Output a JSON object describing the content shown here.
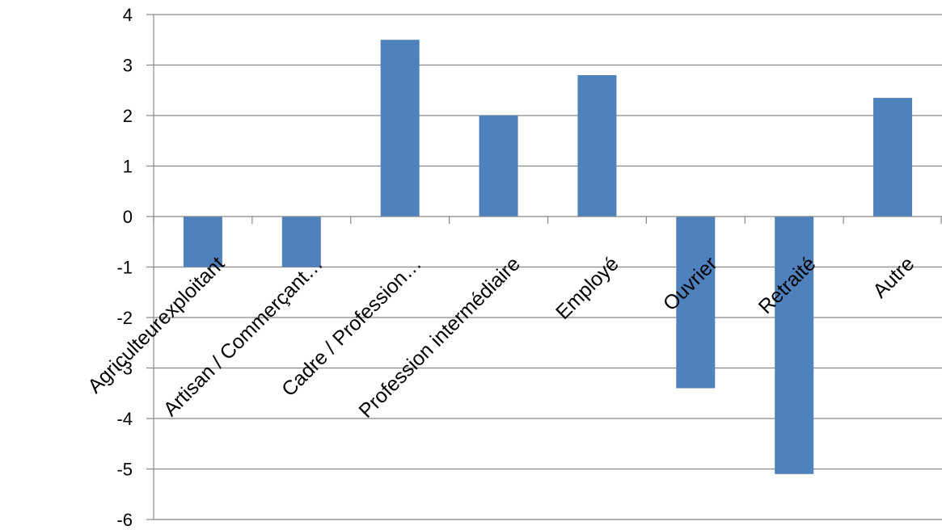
{
  "colors": {
    "bar": "#4F81BD",
    "gridline": "#888888",
    "axis": "#888888",
    "text": "#000000"
  },
  "chart_data": {
    "type": "bar",
    "title": "",
    "xlabel": "",
    "ylabel": "",
    "ylim": [
      -6,
      4
    ],
    "yticks": [
      4,
      3,
      2,
      1,
      0,
      -1,
      -2,
      -3,
      -4,
      -5,
      -6
    ],
    "grid": true,
    "legend": "none",
    "categories": [
      "Agriculteurexploitant",
      "Artisan / Commerçant…",
      "Cadre / Profession…",
      "Profession intermédiaire",
      "Employé",
      "Ouvrier",
      "Retraité",
      "Autre"
    ],
    "values": [
      -1.0,
      -1.0,
      3.5,
      2.0,
      2.8,
      -3.4,
      -5.1,
      2.35
    ]
  }
}
